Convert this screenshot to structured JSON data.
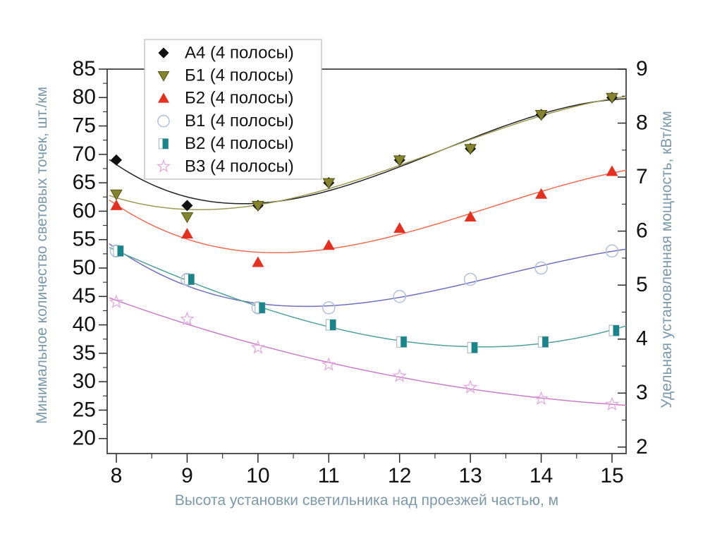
{
  "chart_data": {
    "type": "scatter",
    "title": "",
    "x": [
      8,
      9,
      10,
      11,
      12,
      13,
      14,
      15
    ],
    "xlabel": "Высота установки светильника над проезжей частью, м",
    "ylabel_left": "Минимальное количество световых точек, шт./км",
    "ylabel_right": "Удельная установленная мощность, кВт/км",
    "xlim": [
      8,
      15
    ],
    "ylim_left": [
      20,
      85
    ],
    "ylim_right": [
      2,
      9
    ],
    "x_major_step": 1,
    "x_minor_step": 0.5,
    "y_left_major_step": 5,
    "y_left_minor_step": 2.5,
    "y_right_major_step": 1,
    "y_right_minor_step": 0.5,
    "grid": false,
    "legend_position": "top-left",
    "curve_style": "cubic-polynomial-fit",
    "series": [
      {
        "name": "А4 (4 полосы)",
        "marker": "diamond",
        "marker_color": "#111111",
        "line_color": "#222222",
        "values": [
          69,
          61,
          61,
          65,
          69,
          71,
          77,
          80
        ]
      },
      {
        "name": "Б1 (4 полосы)",
        "marker": "triangle-down",
        "marker_color": "#84842c",
        "line_color": "#9b9b55",
        "values": [
          63,
          59,
          61,
          65,
          69,
          71,
          77,
          80
        ]
      },
      {
        "name": "Б2 (4 полосы)",
        "marker": "triangle-up",
        "marker_color": "#e6301f",
        "line_color": "#ee6c55",
        "values": [
          61,
          56,
          51,
          54,
          57,
          59,
          63,
          67
        ]
      },
      {
        "name": "В1 (4 полосы)",
        "marker": "circle-open",
        "marker_color": "#b7c3dd",
        "line_color": "#6f6fbb",
        "values": [
          53,
          48,
          43,
          43,
          45,
          48,
          50,
          53
        ]
      },
      {
        "name": "В2 (4 полосы)",
        "marker": "square-half",
        "marker_color": "#19858b",
        "line_color": "#52a09b",
        "values": [
          53,
          48,
          43,
          40,
          37,
          36,
          37,
          39
        ]
      },
      {
        "name": "В3 (4 полосы)",
        "marker": "star-open",
        "marker_color": "#e2aade",
        "line_color": "#c77fc7",
        "values": [
          44,
          41,
          36,
          33,
          31,
          29,
          27,
          26
        ]
      }
    ]
  },
  "styles": {
    "axis_title_color": "#7b99a8",
    "tick_label_color": "#111111",
    "frame_color": "#2a2a2a",
    "legend_border_color": "#bbbbbb",
    "background": "#ffffff"
  }
}
